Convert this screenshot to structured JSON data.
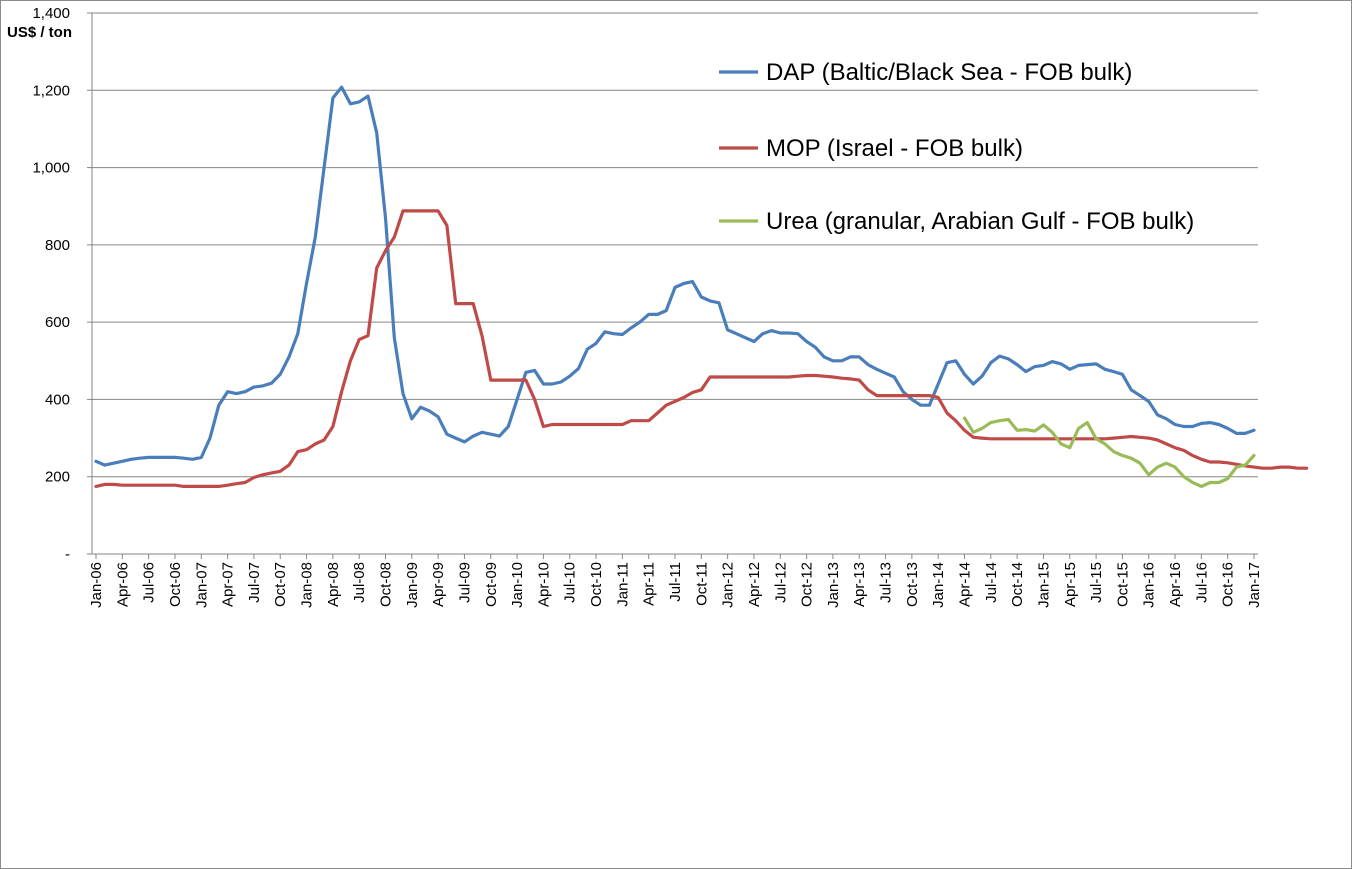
{
  "chart_data": {
    "type": "line",
    "title": "",
    "ylabel": "US$ / ton",
    "xlabel": "",
    "ylim": [
      0,
      1400
    ],
    "yticks": [
      0,
      200,
      400,
      600,
      800,
      1000,
      1200,
      1400
    ],
    "ytick_labels": [
      "-",
      "200",
      "400",
      "600",
      "800",
      "1,000",
      "1,200",
      "1,400"
    ],
    "x_tick_labels": [
      "Jan-06",
      "Apr-06",
      "Jul-06",
      "Oct-06",
      "Jan-07",
      "Apr-07",
      "Jul-07",
      "Oct-07",
      "Jan-08",
      "Apr-08",
      "Jul-08",
      "Oct-08",
      "Jan-09",
      "Apr-09",
      "Jul-09",
      "Oct-09",
      "Jan-10",
      "Apr-10",
      "Jul-10",
      "Oct-10",
      "Jan-11",
      "Apr-11",
      "Jul-11",
      "Oct-11",
      "Jan-12",
      "Apr-12",
      "Jul-12",
      "Oct-12",
      "Jan-13",
      "Apr-13",
      "Jul-13",
      "Oct-13",
      "Jan-14",
      "Apr-14",
      "Jul-14",
      "Oct-14",
      "Jan-15",
      "Apr-15",
      "Jul-15",
      "Oct-15",
      "Jan-16",
      "Apr-16",
      "Jul-16",
      "Oct-16",
      "Jan-17"
    ],
    "x_start": "Jan-06",
    "x_end": "Jan-17",
    "grid": "horizontal",
    "legend_position": "top-right",
    "series": [
      {
        "name": "DAP (Baltic/Black Sea - FOB bulk)",
        "color": "#4a7ebb",
        "start": "Jan-06",
        "values": [
          240,
          230,
          235,
          240,
          245,
          248,
          250,
          250,
          250,
          250,
          248,
          245,
          250,
          300,
          385,
          420,
          415,
          420,
          432,
          435,
          442,
          465,
          510,
          570,
          700,
          820,
          1000,
          1180,
          1208,
          1165,
          1170,
          1185,
          1090,
          870,
          560,
          415,
          350,
          380,
          370,
          355,
          310,
          300,
          290,
          305,
          315,
          310,
          305,
          330,
          400,
          470,
          475,
          440,
          440,
          445,
          460,
          480,
          530,
          545,
          575,
          570,
          568,
          585,
          600,
          620,
          620,
          630,
          690,
          700,
          705,
          665,
          655,
          650,
          580,
          570,
          560,
          550,
          570,
          578,
          572,
          572,
          570,
          550,
          535,
          510,
          500,
          500,
          510,
          510,
          490,
          478,
          468,
          458,
          420,
          400,
          385,
          385,
          440,
          495,
          500,
          465,
          440,
          460,
          495,
          512,
          505,
          490,
          472,
          485,
          488,
          498,
          492,
          478,
          488,
          490,
          492,
          478,
          472,
          465,
          425,
          410,
          395,
          360,
          350,
          335,
          330,
          330,
          338,
          340,
          335,
          325,
          312,
          312,
          320
        ]
      },
      {
        "name": "MOP (Israel - FOB bulk)",
        "color": "#be4b48",
        "start": "Jan-06",
        "values": [
          175,
          180,
          180,
          178,
          178,
          178,
          178,
          178,
          178,
          178,
          175,
          175,
          175,
          175,
          175,
          178,
          182,
          185,
          198,
          205,
          210,
          214,
          230,
          265,
          270,
          285,
          295,
          330,
          420,
          500,
          555,
          565,
          740,
          785,
          820,
          888,
          888,
          888,
          888,
          888,
          850,
          648,
          648,
          648,
          565,
          450,
          450,
          450,
          450,
          450,
          400,
          330,
          335,
          335,
          335,
          335,
          335,
          335,
          335,
          335,
          335,
          345,
          345,
          345,
          365,
          385,
          395,
          405,
          418,
          425,
          458,
          458,
          458,
          458,
          458,
          458,
          458,
          458,
          458,
          458,
          460,
          462,
          462,
          460,
          458,
          455,
          453,
          450,
          425,
          410,
          410,
          410,
          410,
          410,
          410,
          410,
          405,
          365,
          345,
          320,
          302,
          300,
          298,
          298,
          298,
          298,
          298,
          298,
          298,
          298,
          298,
          298,
          298,
          298,
          298,
          298,
          300,
          302,
          304,
          302,
          300,
          295,
          285,
          275,
          268,
          255,
          245,
          238,
          238,
          236,
          232,
          228,
          225,
          222,
          222,
          225,
          225,
          222,
          222
        ]
      },
      {
        "name": "Urea (granular, Arabian Gulf - FOB bulk)",
        "color": "#9bbb59",
        "start": "Apr-14",
        "values": [
          352,
          315,
          325,
          340,
          345,
          348,
          320,
          322,
          318,
          334,
          315,
          285,
          275,
          325,
          340,
          298,
          285,
          265,
          255,
          248,
          235,
          205,
          225,
          235,
          225,
          200,
          185,
          175,
          185,
          185,
          195,
          225,
          230,
          255
        ]
      }
    ]
  }
}
